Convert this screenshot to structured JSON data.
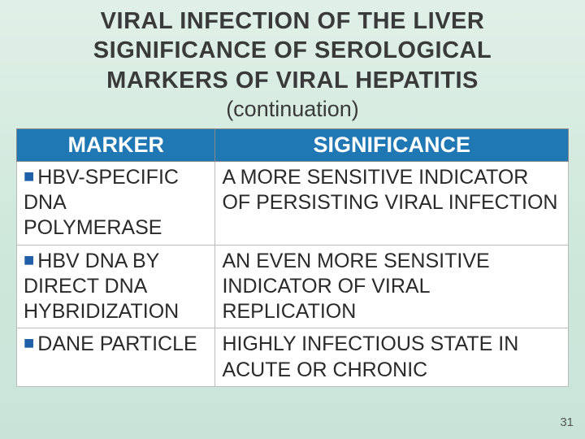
{
  "title": {
    "line1": "VIRAL INFECTION OF THE LIVER",
    "line2": "SIGNIFICANCE OF SEROLOGICAL",
    "line3": "MARKERS OF VIRAL HEPATITIS",
    "subtitle": "(continuation)"
  },
  "table": {
    "headers": {
      "col1": "MARKER",
      "col2": "SIGNIFICANCE"
    },
    "rows": [
      {
        "marker": "HBV-SPECIFIC DNA POLYMERASE",
        "significance": "A MORE SENSITIVE INDICATOR OF PERSISTING VIRAL INFECTION"
      },
      {
        "marker": "HBV DNA BY DIRECT DNA HYBRIDIZATION",
        "significance": "AN EVEN MORE SENSITIVE INDICATOR OF VIRAL REPLICATION"
      },
      {
        "marker": "DANE PARTICLE",
        "significance": "HIGHLY INFECTIOUS STATE IN ACUTE OR CHRONIC"
      }
    ]
  },
  "colors": {
    "header_bg": "#1f77b4",
    "header_text": "#ffffff",
    "body_bg_gradient_top": "#e0f0e8",
    "body_bg_gradient_bottom": "#c8e4d8",
    "bullet_color": "#1f5fa8",
    "text_color": "#3a3a3a"
  },
  "page_number": "31"
}
